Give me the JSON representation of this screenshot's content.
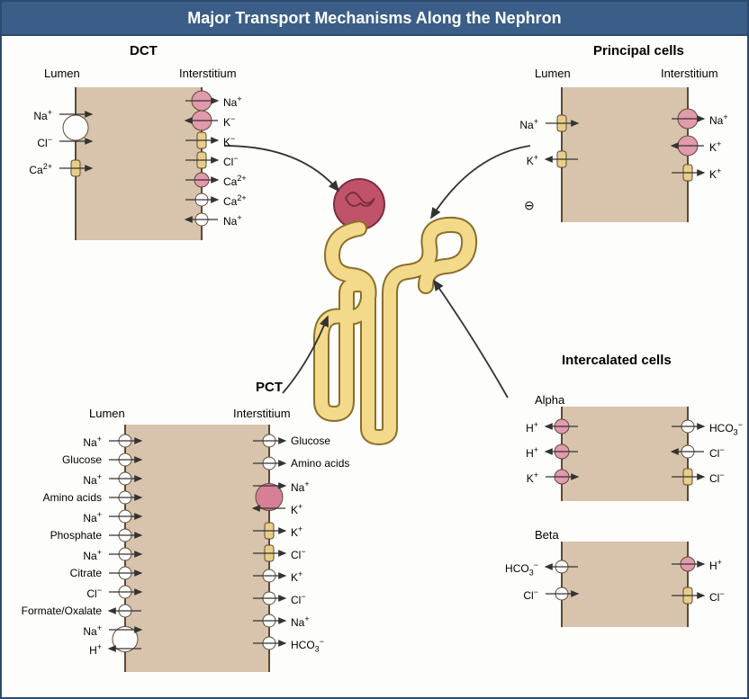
{
  "title": "Major Transport Mechanisms Along the Nephron",
  "colors": {
    "header_bg": "#3a5e87",
    "header_text": "#ffffff",
    "frame_border": "#2b4a6f",
    "cell_fill": "#d8c3ac",
    "cell_stroke": "#5b4a38",
    "tubule_fill": "#f3d98a",
    "tubule_stroke": "#8a6f2a",
    "glomerulus_fill": "#c0536a",
    "glomerulus_stroke": "#7a2e3c",
    "channel_white": "#ffffff",
    "channel_pink": "#e29aac",
    "channel_bigpink": "#d87f98",
    "channel_yellow": "#e8cf87",
    "arrow": "#333333"
  },
  "sections": {
    "dct": {
      "heading": "DCT",
      "lumen_label": "Lumen",
      "interstitium_label": "Interstitium",
      "lumen_rows": [
        {
          "ion": "Na⁺",
          "dir": "right",
          "shape": "white-big"
        },
        {
          "ion": "Cl⁻",
          "dir": "right",
          "shape": "white-big"
        },
        {
          "ion": "Ca²⁺",
          "dir": "right",
          "shape": "yellow"
        }
      ],
      "inter_rows": [
        {
          "ion": "Na⁺",
          "dir": "right",
          "shape": "pink"
        },
        {
          "ion": "K⁻",
          "dir": "left",
          "shape": "pink"
        },
        {
          "ion": "K⁻",
          "dir": "right",
          "shape": "yellow"
        },
        {
          "ion": "Cl⁻",
          "dir": "right",
          "shape": "yellow"
        },
        {
          "ion": "Ca²⁺",
          "dir": "right",
          "shape": "pink-sm"
        },
        {
          "ion": "Ca²⁺",
          "dir": "right",
          "shape": "white-sm"
        },
        {
          "ion": "Na⁺",
          "dir": "left",
          "shape": "white-sm"
        }
      ]
    },
    "principal": {
      "heading": "Principal cells",
      "lumen_label": "Lumen",
      "interstitium_label": "Interstitium",
      "lumen_rows": [
        {
          "ion": "Na⁺",
          "dir": "right",
          "shape": "yellow"
        },
        {
          "ion": "K⁺",
          "dir": "left",
          "shape": "yellow"
        }
      ],
      "inter_rows": [
        {
          "ion": "Na⁺",
          "dir": "right",
          "shape": "pink"
        },
        {
          "ion": "K⁺",
          "dir": "left",
          "shape": "pink"
        },
        {
          "ion": "K⁺",
          "dir": "right",
          "shape": "yellow"
        }
      ],
      "neg_symbol": "⊖"
    },
    "pct": {
      "heading": "PCT",
      "lumen_label": "Lumen",
      "interstitium_label": "Interstitium",
      "lumen_rows": [
        {
          "ion": "Na⁺",
          "dir": "right",
          "shape": "white-sm"
        },
        {
          "ion": "Glucose",
          "dir": "right",
          "shape": "white-sm"
        },
        {
          "ion": "Na⁺",
          "dir": "right",
          "shape": "white-sm"
        },
        {
          "ion": "Amino acids",
          "dir": "right",
          "shape": "white-sm"
        },
        {
          "ion": "Na⁺",
          "dir": "right",
          "shape": "white-sm"
        },
        {
          "ion": "Phosphate",
          "dir": "right",
          "shape": "white-sm"
        },
        {
          "ion": "Na⁺",
          "dir": "right",
          "shape": "white-sm"
        },
        {
          "ion": "Citrate",
          "dir": "right",
          "shape": "white-sm"
        },
        {
          "ion": "Cl⁻",
          "dir": "right",
          "shape": "white-sm"
        },
        {
          "ion": "Formate/Oxalate",
          "dir": "left",
          "shape": "white-sm"
        },
        {
          "ion": "Na⁺",
          "dir": "right",
          "shape": "white-big"
        },
        {
          "ion": "H⁺",
          "dir": "left",
          "shape": "white-big"
        }
      ],
      "inter_rows": [
        {
          "ion": "Glucose",
          "dir": "right",
          "shape": "white-sm"
        },
        {
          "ion": "Amino acids",
          "dir": "right",
          "shape": "white-sm"
        },
        {
          "ion": "Na⁺",
          "dir": "right",
          "shape": "bigpink"
        },
        {
          "ion": "K⁺",
          "dir": "left",
          "shape": "bigpink"
        },
        {
          "ion": "K⁺",
          "dir": "right",
          "shape": "yellow"
        },
        {
          "ion": "Cl⁻",
          "dir": "right",
          "shape": "yellow"
        },
        {
          "ion": "K⁺",
          "dir": "right",
          "shape": "white-sm"
        },
        {
          "ion": "Cl⁻",
          "dir": "right",
          "shape": "white-sm"
        },
        {
          "ion": "Na⁺",
          "dir": "right",
          "shape": "white-sm"
        },
        {
          "ion": "HCO₃⁻",
          "dir": "right",
          "shape": "white-sm"
        }
      ]
    },
    "intercalated": {
      "heading": "Intercalated cells",
      "alpha_label": "Alpha",
      "beta_label": "Beta",
      "alpha": {
        "lumen_rows": [
          {
            "ion": "H⁺",
            "dir": "left",
            "shape": "pink-sm"
          },
          {
            "ion": "H⁺",
            "dir": "left",
            "shape": "pink-sm"
          },
          {
            "ion": "K⁺",
            "dir": "right",
            "shape": "pink-sm"
          }
        ],
        "inter_rows": [
          {
            "ion": "HCO₃⁻",
            "dir": "right",
            "shape": "white-sm"
          },
          {
            "ion": "Cl⁻",
            "dir": "left",
            "shape": "white-sm"
          },
          {
            "ion": "Cl⁻",
            "dir": "right",
            "shape": "yellow"
          }
        ]
      },
      "beta": {
        "lumen_rows": [
          {
            "ion": "HCO₃⁻",
            "dir": "left",
            "shape": "white-sm"
          },
          {
            "ion": "Cl⁻",
            "dir": "right",
            "shape": "white-sm"
          }
        ],
        "inter_rows": [
          {
            "ion": "H⁺",
            "dir": "right",
            "shape": "pink-sm"
          },
          {
            "ion": "Cl⁻",
            "dir": "right",
            "shape": "yellow"
          }
        ]
      }
    }
  }
}
